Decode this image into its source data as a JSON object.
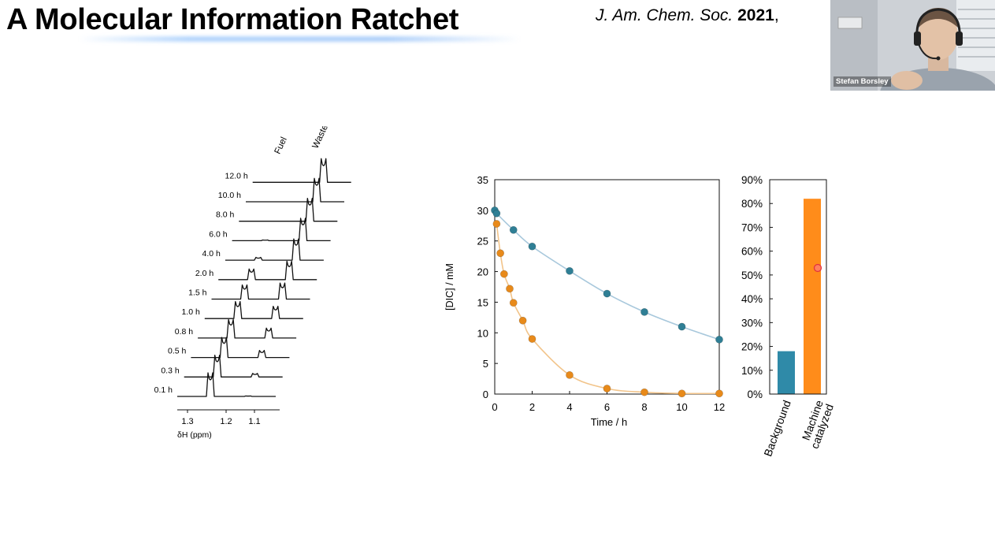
{
  "slide": {
    "title": "A Molecular Information Ratchet",
    "citation": {
      "journal": "J. Am. Chem. Soc.",
      "year": "2021",
      "trailing": ","
    }
  },
  "webcam": {
    "participant_name": "Stefan Borsley"
  },
  "nmr_panel": {
    "peak_labels": [
      "Fuel",
      "Waste"
    ],
    "traces": [
      {
        "label": "0.1 h",
        "fuel": 1.0,
        "waste": 0.02
      },
      {
        "label": "0.3 h",
        "fuel": 0.92,
        "waste": 0.15
      },
      {
        "label": "0.5 h",
        "fuel": 0.85,
        "waste": 0.3
      },
      {
        "label": "0.8 h",
        "fuel": 0.78,
        "waste": 0.42
      },
      {
        "label": "1.0 h",
        "fuel": 0.72,
        "waste": 0.52
      },
      {
        "label": "1.5 h",
        "fuel": 0.6,
        "waste": 0.68
      },
      {
        "label": "2.0 h",
        "fuel": 0.45,
        "waste": 0.78
      },
      {
        "label": "4.0 h",
        "fuel": 0.12,
        "waste": 0.9
      },
      {
        "label": "6.0 h",
        "fuel": 0.03,
        "waste": 0.95
      },
      {
        "label": "8.0 h",
        "fuel": 0.0,
        "waste": 0.97
      },
      {
        "label": "10.0 h",
        "fuel": 0.0,
        "waste": 0.99
      },
      {
        "label": "12.0 h",
        "fuel": 0.0,
        "waste": 1.0
      }
    ],
    "x_ticks": [
      "1.3",
      "1.2",
      "1.1"
    ],
    "x_axis_label": "δH (ppm)"
  },
  "chart_data": [
    {
      "type": "scatter",
      "xlabel": "Time / h",
      "ylabel": "[DIC] / mM",
      "xlim": [
        0,
        12
      ],
      "ylim": [
        0,
        35
      ],
      "xticks": [
        0,
        2,
        4,
        6,
        8,
        10,
        12
      ],
      "yticks": [
        0,
        5,
        10,
        15,
        20,
        25,
        30,
        35
      ],
      "grid": false,
      "series": [
        {
          "color": "#2f7f95",
          "fit_color": "#a8c8dc",
          "x": [
            0,
            0.1,
            1.0,
            2.0,
            4.0,
            6.0,
            8.0,
            10.0,
            12.0
          ],
          "y": [
            30.0,
            29.5,
            26.8,
            24.1,
            20.1,
            16.4,
            13.4,
            11.0,
            8.9
          ]
        },
        {
          "color": "#e88a1a",
          "fit_color": "#f2c48a",
          "x": [
            0.1,
            0.3,
            0.5,
            0.8,
            1.0,
            1.5,
            2.0,
            4.0,
            6.0,
            8.0,
            10.0,
            12.0
          ],
          "y": [
            27.8,
            23.0,
            19.6,
            17.2,
            14.9,
            12.0,
            9.0,
            3.1,
            0.9,
            0.3,
            0.1,
            0.1
          ]
        }
      ]
    },
    {
      "type": "bar",
      "categories": [
        "Background",
        "Machine\ncatalyzed"
      ],
      "values": [
        18,
        82
      ],
      "colors": [
        "#2f8aa8",
        "#ff8c1a"
      ],
      "ylim": [
        0,
        90
      ],
      "yticks": [
        "0%",
        "10%",
        "20%",
        "30%",
        "40%",
        "50%",
        "60%",
        "70%",
        "80%",
        "90%"
      ],
      "grid": false
    }
  ]
}
